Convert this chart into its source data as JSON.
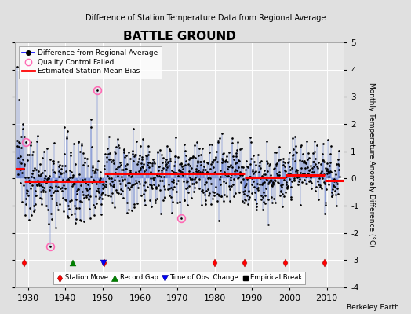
{
  "title": "BATTLE GROUND",
  "subtitle": "Difference of Station Temperature Data from Regional Average",
  "ylabel": "Monthly Temperature Anomaly Difference (°C)",
  "xlabel_years": [
    1930,
    1940,
    1950,
    1960,
    1970,
    1980,
    1990,
    2000,
    2010
  ],
  "xlim": [
    1926.5,
    2014.5
  ],
  "ylim": [
    -4,
    5
  ],
  "yticks": [
    -4,
    -3,
    -2,
    -1,
    0,
    1,
    2,
    3,
    4,
    5
  ],
  "background_color": "#e0e0e0",
  "plot_bg_color": "#e8e8e8",
  "station_moves_x": [
    1929.0,
    1950.5,
    1980.0,
    1988.0,
    1999.0,
    2009.5
  ],
  "record_gaps_x": [
    1942.0
  ],
  "obs_changes_x": [
    1950.3
  ],
  "empirical_breaks_x": [],
  "marker_y": -3.1,
  "qc_failed": [
    [
      1929.5,
      1.35
    ],
    [
      1936.0,
      -2.5
    ],
    [
      1948.5,
      3.25
    ],
    [
      1971.0,
      -1.45
    ]
  ],
  "mean_bias_segments": [
    {
      "x": [
        1926.5,
        1929.0
      ],
      "y": [
        0.35,
        0.35
      ]
    },
    {
      "x": [
        1929.0,
        1950.5
      ],
      "y": [
        -0.12,
        -0.12
      ]
    },
    {
      "x": [
        1950.5,
        1980.0
      ],
      "y": [
        0.18,
        0.18
      ]
    },
    {
      "x": [
        1980.0,
        1988.0
      ],
      "y": [
        0.18,
        0.18
      ]
    },
    {
      "x": [
        1988.0,
        1999.0
      ],
      "y": [
        0.04,
        0.04
      ]
    },
    {
      "x": [
        1999.0,
        2009.5
      ],
      "y": [
        0.12,
        0.12
      ]
    },
    {
      "x": [
        2009.5,
        2014.5
      ],
      "y": [
        -0.08,
        -0.08
      ]
    }
  ],
  "seed": 137
}
